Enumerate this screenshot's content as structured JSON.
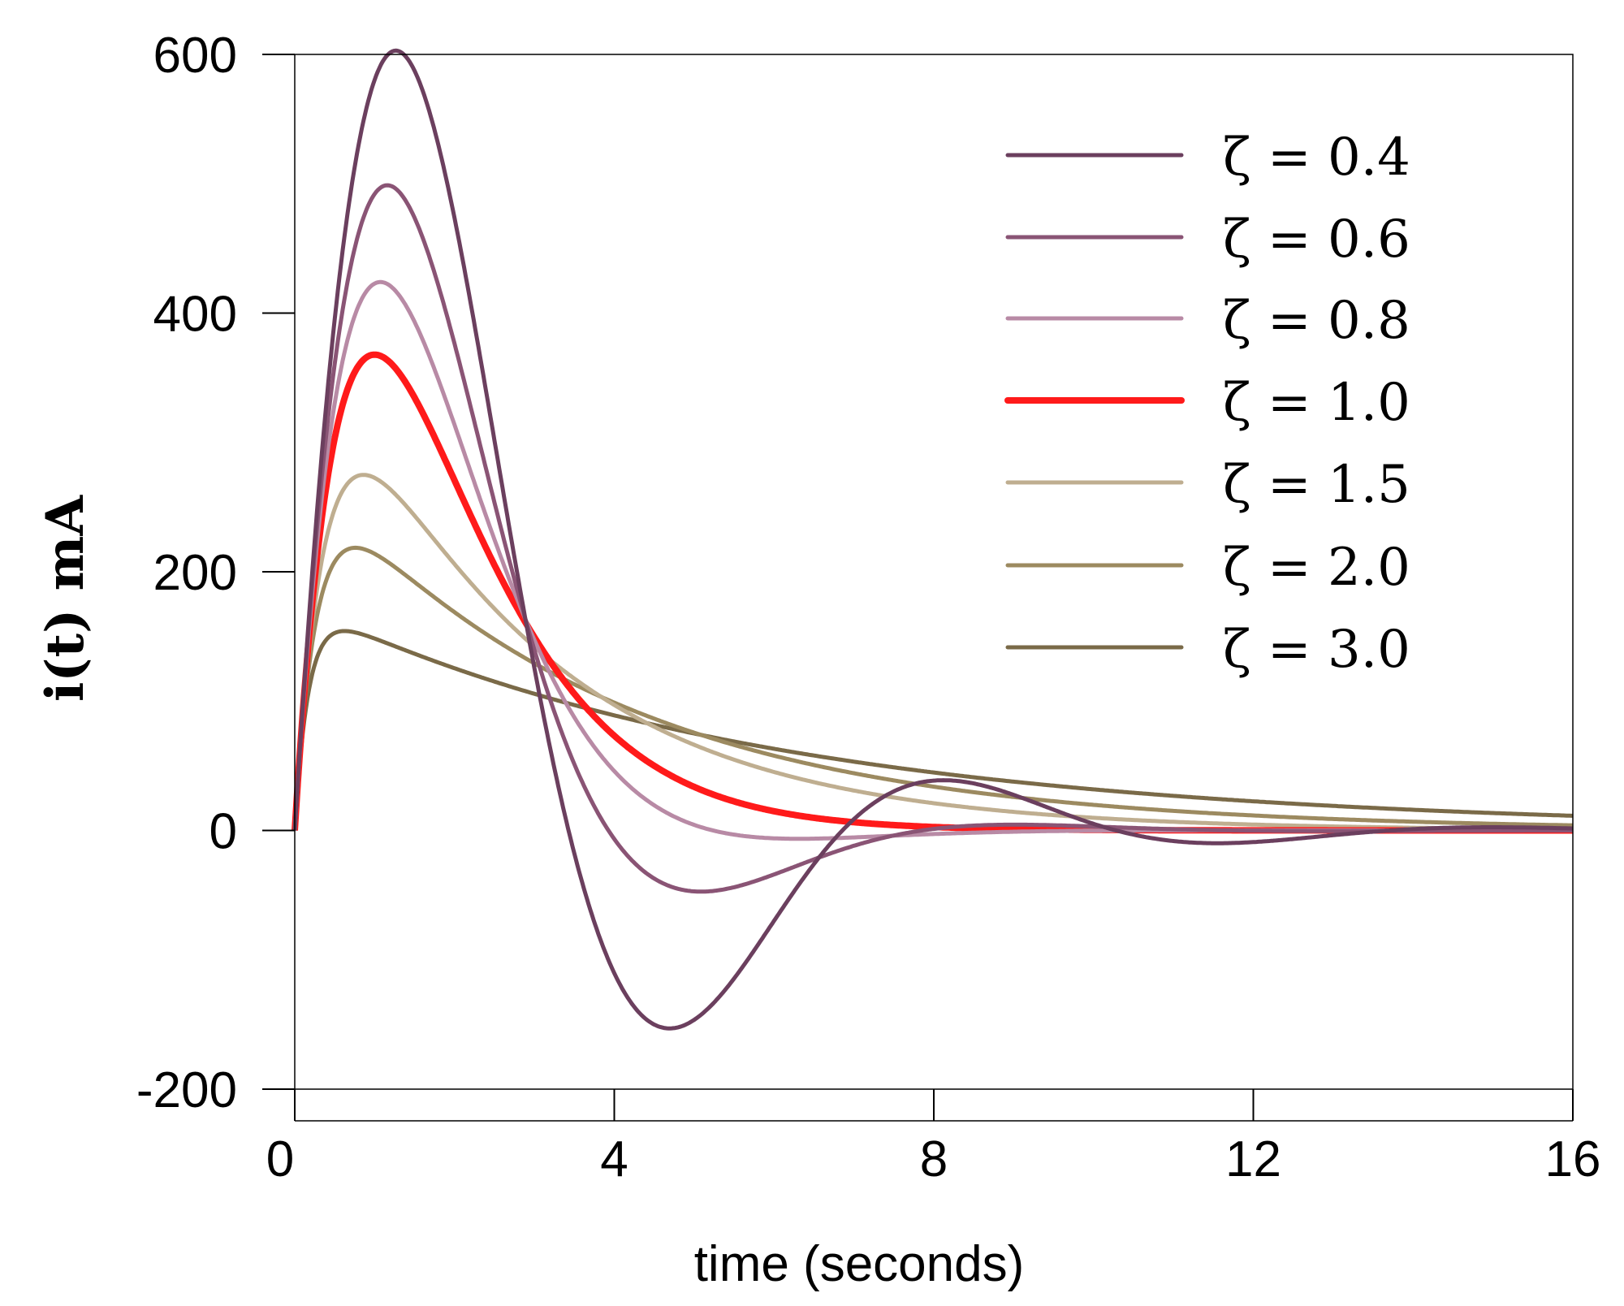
{
  "chart_data": {
    "type": "line",
    "title": "",
    "xlabel": "time (seconds)",
    "ylabel": "i(t) mA",
    "xlim": [
      0,
      16
    ],
    "ylim": [
      -200,
      600
    ],
    "xticks": [
      "0",
      "4",
      "8",
      "12",
      "16"
    ],
    "yticks": [
      "600",
      "400",
      "200",
      "0",
      "-200"
    ],
    "grid": false,
    "legend_placement": "top-right",
    "series": [
      {
        "name": "ζ = 0.4",
        "zeta": 0.4,
        "color": "#6b3f5e",
        "peak": {
          "t": 1.27,
          "i": 603
        }
      },
      {
        "name": "ζ = 0.6",
        "zeta": 0.6,
        "color": "#8a5475",
        "peak": {
          "t": 1.16,
          "i": 499
        }
      },
      {
        "name": "ζ = 0.8",
        "zeta": 0.8,
        "color": "#b88aa5",
        "peak": {
          "t": 1.07,
          "i": 424
        }
      },
      {
        "name": "ζ = 1.0",
        "zeta": 1.0,
        "color": "#ff1a1a",
        "peak": {
          "t": 1.0,
          "i": 368
        }
      },
      {
        "name": "ζ = 1.5",
        "zeta": 1.5,
        "color": "#bfae90",
        "peak": {
          "t": 0.86,
          "i": 275
        }
      },
      {
        "name": "ζ = 2.0",
        "zeta": 2.0,
        "color": "#9c8a60",
        "peak": {
          "t": 0.76,
          "i": 218
        }
      },
      {
        "name": "ζ = 3.0",
        "zeta": 3.0,
        "color": "#7a6a48",
        "peak": {
          "t": 0.62,
          "i": 154
        }
      }
    ]
  }
}
